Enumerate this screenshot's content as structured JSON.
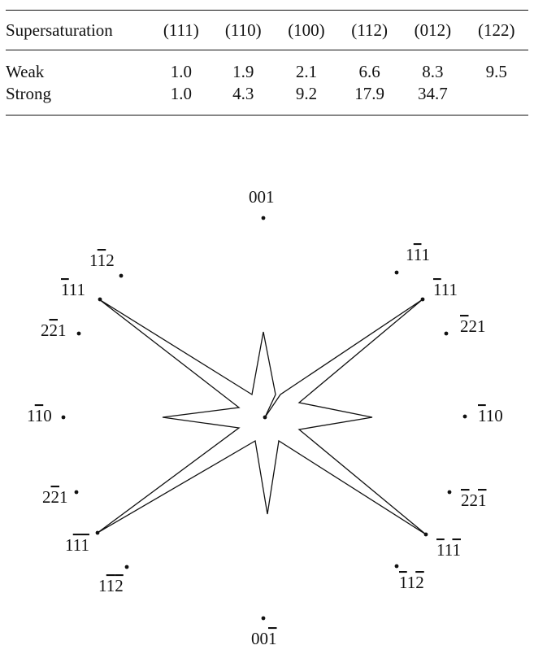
{
  "table": {
    "headers": [
      "Supersaturation",
      "(111)",
      "(110)",
      "(100)",
      "(112)",
      "(012)",
      "(122)"
    ],
    "rows": [
      {
        "label": "Weak",
        "values": [
          "1.0",
          "1.9",
          "2.1",
          "6.6",
          "8.3",
          "9.5"
        ]
      },
      {
        "label": "Strong",
        "values": [
          "1.0",
          "4.3",
          "9.2",
          "17.9",
          "34.7",
          ""
        ]
      }
    ]
  },
  "diagram": {
    "directions": [
      {
        "digits": [
          "0",
          "0",
          "1"
        ],
        "bars": [
          false,
          false,
          false
        ]
      },
      {
        "digits": [
          "1",
          "1",
          "2"
        ],
        "bars": [
          false,
          true,
          false
        ]
      },
      {
        "digits": [
          "1",
          "1",
          "1"
        ],
        "bars": [
          true,
          false,
          false
        ]
      },
      {
        "digits": [
          "1",
          "1",
          "1"
        ],
        "bars": [
          false,
          true,
          false
        ]
      },
      {
        "digits": [
          "1",
          "1",
          "1"
        ],
        "bars": [
          true,
          false,
          false
        ]
      },
      {
        "digits": [
          "2",
          "2",
          "1"
        ],
        "bars": [
          false,
          true,
          false
        ]
      },
      {
        "digits": [
          "2",
          "2",
          "1"
        ],
        "bars": [
          true,
          false,
          false
        ]
      },
      {
        "digits": [
          "1",
          "1",
          "0"
        ],
        "bars": [
          false,
          true,
          false
        ]
      },
      {
        "digits": [
          "1",
          "1",
          "0"
        ],
        "bars": [
          true,
          false,
          false
        ]
      },
      {
        "digits": [
          "2",
          "2",
          "1"
        ],
        "bars": [
          false,
          true,
          false
        ]
      },
      {
        "digits": [
          "2",
          "2",
          "1"
        ],
        "bars": [
          true,
          false,
          true
        ]
      },
      {
        "digits": [
          "1",
          "1",
          "1"
        ],
        "bars": [
          false,
          true,
          true
        ]
      },
      {
        "digits": [
          "1",
          "1",
          "1"
        ],
        "bars": [
          true,
          false,
          true
        ]
      },
      {
        "digits": [
          "1",
          "1",
          "2"
        ],
        "bars": [
          false,
          true,
          true
        ]
      },
      {
        "digits": [
          "1",
          "1",
          "2"
        ],
        "bars": [
          true,
          false,
          true
        ]
      },
      {
        "digits": [
          "0",
          "0",
          "1"
        ],
        "bars": [
          false,
          false,
          true
        ]
      }
    ]
  }
}
